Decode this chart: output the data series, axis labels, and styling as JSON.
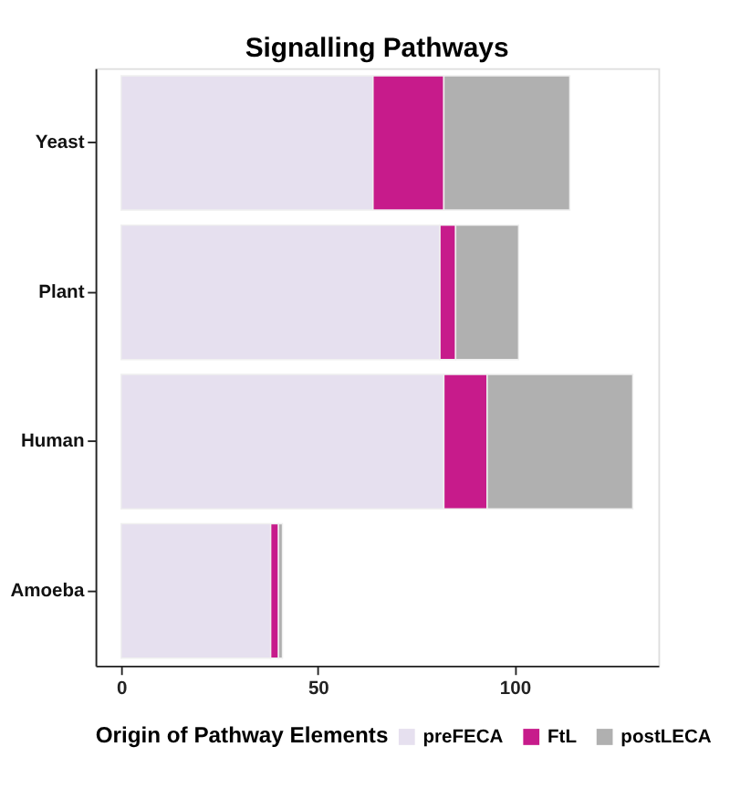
{
  "chart_data": {
    "type": "bar",
    "orientation": "horizontal",
    "stacked": true,
    "title": "Signalling Pathways",
    "categories": [
      "Yeast",
      "Plant",
      "Human",
      "Amoeba"
    ],
    "series": [
      {
        "name": "preFECA",
        "color": "#e6e0ef",
        "values": [
          64,
          81,
          82,
          38
        ]
      },
      {
        "name": "FtL",
        "color": "#c71b8b",
        "values": [
          18,
          4,
          11,
          2
        ]
      },
      {
        "name": "postLECA",
        "color": "#b0b0b0",
        "values": [
          32,
          16,
          37,
          1
        ]
      }
    ],
    "xlim": [
      -6.5,
      136.5
    ],
    "xticks": [
      0,
      50,
      100
    ],
    "grid": false,
    "legend": "bottom",
    "legend_title": "Origin of Pathway Elements"
  }
}
